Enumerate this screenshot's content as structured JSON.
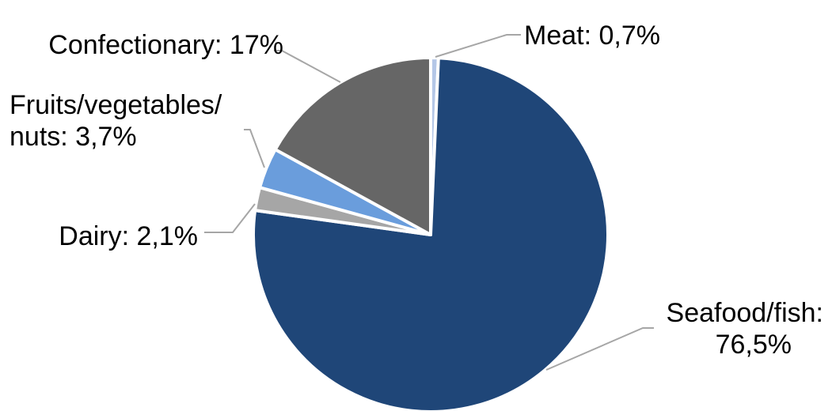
{
  "chart_data": {
    "type": "pie",
    "title": "",
    "categories": [
      "Meat",
      "Seafood/fish",
      "Dairy",
      "Fruits/vegetables/nuts",
      "Confectionary"
    ],
    "values": [
      0.7,
      76.5,
      2.1,
      3.7,
      17
    ],
    "colors": [
      "#b4c7e7",
      "#1f4678",
      "#a6a6a6",
      "#6a9ddc",
      "#666666"
    ],
    "labels": [
      {
        "lines": [
          "Meat: 0,7%"
        ]
      },
      {
        "lines": [
          "Seafood/fish:",
          "76,5%"
        ]
      },
      {
        "lines": [
          "Dairy: 2,1%"
        ]
      },
      {
        "lines": [
          "Fruits/vegetables/",
          "nuts: 3,7%"
        ]
      },
      {
        "lines": [
          "Confectionary: 17%"
        ]
      }
    ],
    "legend": "none",
    "start_angle": "12 o'clock",
    "direction": "clockwise"
  }
}
